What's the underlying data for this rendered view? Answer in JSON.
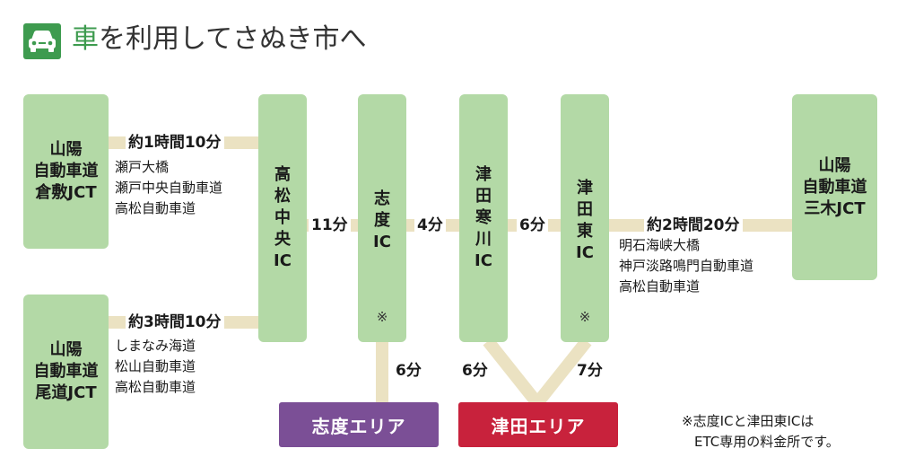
{
  "header": {
    "title_accent": "車",
    "title_rest": "を利用してさぬき市へ"
  },
  "colors": {
    "box": "#b3d9a6",
    "road": "#ebe2c2",
    "header_green": "#3e9b4f",
    "shido_area": "#7b4f96",
    "tsuda_area": "#c8223c"
  },
  "origins": {
    "kurashiki": "山陽\n自動車道\n倉敷JCT",
    "onomichi": "山陽\n自動車道\n尾道JCT"
  },
  "destination": "山陽\n自動車道\n三木JCT",
  "routes": {
    "kurashiki": {
      "time": "約1時間10分",
      "via": [
        "瀬戸大橋",
        "瀬戸中央自動車道",
        "高松自動車道"
      ]
    },
    "onomichi": {
      "time": "約3時間10分",
      "via": [
        "しまなみ海道",
        "松山自動車道",
        "高松自動車道"
      ]
    },
    "miki": {
      "time": "約2時間20分",
      "via": [
        "明石海峡大橋",
        "神戸淡路鳴門自動車道",
        "高松自動車道"
      ]
    }
  },
  "interchanges": {
    "takamatsu": "高\n松\n中\n央\nIC",
    "shido": "志\n度\nIC",
    "sangawa": "津\n田\n寒\n川\nIC",
    "tsudahigashi": "津\n田\n東\nIC"
  },
  "marks": {
    "shido": "※",
    "tsudahigashi": "※"
  },
  "segments": {
    "takamatsu_shido": "11分",
    "shido_sangawa": "4分",
    "sangawa_higashi": "6分",
    "shido_area": "6分",
    "sangawa_area": "6分",
    "higashi_area": "7分"
  },
  "areas": {
    "shido": "志度エリア",
    "tsuda": "津田エリア"
  },
  "note": [
    "※志度ICと津田東ICは",
    "ETC専用の料金所です。"
  ]
}
